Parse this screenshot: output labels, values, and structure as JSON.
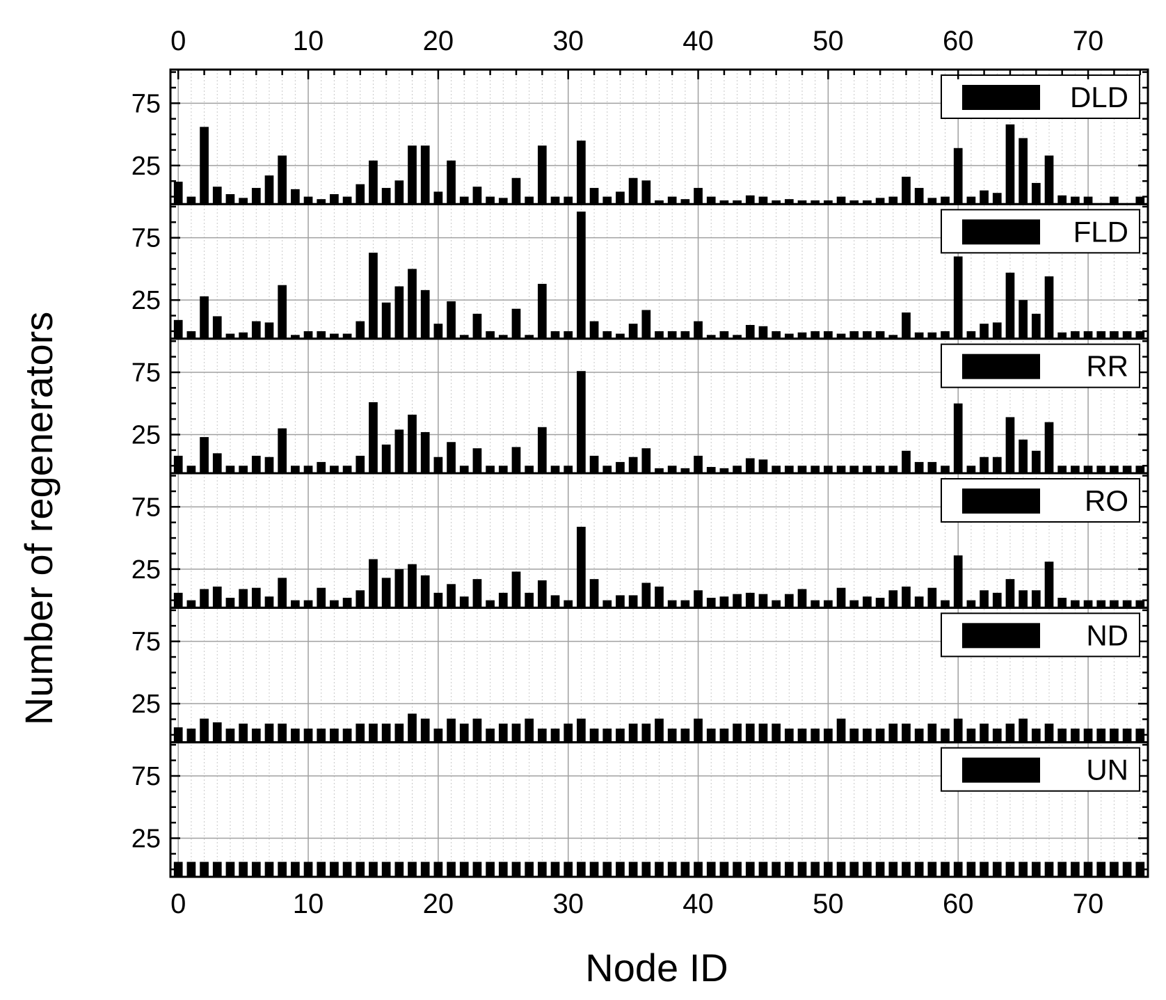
{
  "chart_data": {
    "type": "bar",
    "layout": "stacked-panels-shared-x",
    "xlabel": "Node ID",
    "ylabel": "Number of regenerators",
    "xlim": [
      -0.6,
      74.6
    ],
    "ylim": [
      -6,
      102
    ],
    "x_ticks": [
      "0",
      "10",
      "20",
      "30",
      "40",
      "50",
      "60",
      "70"
    ],
    "y_ticks": [
      "25",
      "75"
    ],
    "grid": true,
    "legend_position": "top-right",
    "bar_color": "#000000",
    "x": [
      0,
      1,
      2,
      3,
      4,
      5,
      6,
      7,
      8,
      9,
      10,
      11,
      12,
      13,
      14,
      15,
      16,
      17,
      18,
      19,
      20,
      21,
      22,
      23,
      24,
      25,
      26,
      27,
      28,
      29,
      30,
      31,
      32,
      33,
      34,
      35,
      36,
      37,
      38,
      39,
      40,
      41,
      42,
      43,
      44,
      45,
      46,
      47,
      48,
      49,
      50,
      51,
      52,
      53,
      54,
      55,
      56,
      57,
      58,
      59,
      60,
      61,
      62,
      63,
      64,
      65,
      66,
      67,
      68,
      69,
      70,
      71,
      72,
      73,
      74
    ],
    "series": [
      {
        "name": "DLD",
        "values": [
          12,
          0,
          56,
          8,
          2,
          -1,
          7,
          17,
          33,
          6,
          0,
          -2,
          2,
          0,
          10,
          29,
          7,
          13,
          41,
          41,
          4,
          29,
          0,
          8,
          0,
          -1,
          15,
          0,
          41,
          0,
          0,
          45,
          7,
          0,
          4,
          15,
          13,
          -3,
          0,
          -2,
          7,
          0,
          -3,
          -3,
          1,
          0,
          -3,
          -2,
          -3,
          -3,
          -3,
          0,
          -3,
          -3,
          -1,
          0,
          16,
          7,
          -1,
          0,
          39,
          0,
          5,
          3,
          58,
          47,
          11,
          33,
          1,
          0,
          0,
          -6,
          0,
          -6,
          0
        ]
      },
      {
        "name": "FLD",
        "values": [
          9,
          0,
          28,
          12,
          -2,
          -1,
          8,
          7,
          37,
          -3,
          0,
          0,
          -2,
          -2,
          8,
          63,
          23,
          36,
          50,
          33,
          6,
          24,
          -3,
          14,
          0,
          -3,
          18,
          -3,
          38,
          0,
          0,
          96,
          8,
          0,
          -2,
          6,
          17,
          0,
          0,
          0,
          8,
          -3,
          0,
          -3,
          5,
          4,
          0,
          -2,
          -1,
          0,
          0,
          -2,
          0,
          0,
          0,
          -3,
          15,
          -1,
          -1,
          0,
          60,
          0,
          6,
          7,
          47,
          25,
          14,
          44,
          -1,
          0,
          0,
          0,
          0,
          0,
          0
        ]
      },
      {
        "name": "RR",
        "values": [
          8,
          0,
          23,
          10,
          0,
          0,
          8,
          7,
          30,
          0,
          0,
          3,
          0,
          0,
          8,
          51,
          17,
          29,
          41,
          27,
          7,
          19,
          0,
          14,
          0,
          0,
          15,
          0,
          31,
          0,
          0,
          76,
          8,
          0,
          3,
          7,
          14,
          -2,
          0,
          -2,
          8,
          -1,
          -2,
          0,
          6,
          5,
          0,
          0,
          0,
          0,
          0,
          0,
          0,
          0,
          0,
          0,
          12,
          3,
          3,
          0,
          50,
          0,
          7,
          7,
          39,
          21,
          12,
          35,
          0,
          0,
          0,
          0,
          0,
          0,
          0
        ]
      },
      {
        "name": "RO",
        "values": [
          6,
          0,
          9,
          11,
          2,
          9,
          10,
          3,
          18,
          0,
          0,
          10,
          0,
          2,
          8,
          33,
          18,
          25,
          29,
          20,
          6,
          13,
          3,
          17,
          0,
          6,
          23,
          6,
          16,
          4,
          0,
          59,
          17,
          0,
          4,
          4,
          14,
          11,
          0,
          0,
          8,
          2,
          3,
          5,
          6,
          5,
          0,
          5,
          9,
          0,
          0,
          10,
          0,
          3,
          2,
          8,
          11,
          3,
          10,
          0,
          36,
          0,
          8,
          6,
          17,
          8,
          8,
          31,
          2,
          0,
          0,
          0,
          0,
          0,
          0
        ]
      },
      {
        "name": "ND",
        "values": [
          6,
          5,
          13,
          10,
          5,
          9,
          5,
          9,
          9,
          5,
          5,
          5,
          5,
          5,
          9,
          9,
          9,
          9,
          17,
          13,
          5,
          13,
          9,
          13,
          5,
          9,
          9,
          13,
          5,
          5,
          9,
          13,
          5,
          5,
          5,
          9,
          9,
          13,
          5,
          5,
          13,
          5,
          5,
          9,
          9,
          9,
          9,
          5,
          5,
          5,
          5,
          13,
          5,
          5,
          5,
          9,
          9,
          5,
          9,
          5,
          13,
          5,
          9,
          5,
          9,
          13,
          5,
          9,
          5,
          5,
          5,
          5,
          5,
          5,
          5
        ]
      },
      {
        "name": "UN",
        "values": [
          6,
          6,
          6,
          6,
          6,
          6,
          6,
          6,
          6,
          6,
          6,
          6,
          6,
          6,
          6,
          6,
          6,
          6,
          6,
          6,
          6,
          6,
          6,
          6,
          6,
          6,
          6,
          6,
          6,
          6,
          6,
          6,
          6,
          6,
          6,
          6,
          6,
          6,
          6,
          6,
          6,
          6,
          6,
          6,
          6,
          6,
          6,
          6,
          6,
          6,
          6,
          6,
          6,
          6,
          6,
          6,
          6,
          6,
          6,
          6,
          6,
          6,
          6,
          6,
          6,
          6,
          6,
          6,
          6,
          6,
          6,
          6,
          6,
          6,
          6
        ]
      }
    ]
  }
}
